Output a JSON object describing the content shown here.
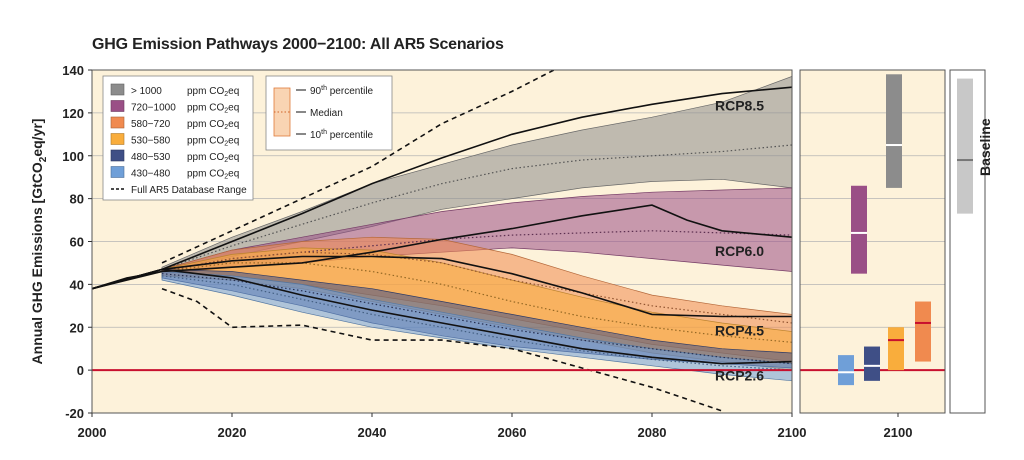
{
  "chart_data": {
    "type": "area",
    "title": "GHG Emission Pathways 2000−2100: All AR5 Scenarios",
    "ylabel_main": "Annual GHG Emissions [GtCO",
    "ylabel_sub": "2",
    "ylabel_tail": "eq/yr]",
    "xlim": [
      2000,
      2100
    ],
    "ylim": [
      -20,
      140
    ],
    "x_ticks": [
      2000,
      2020,
      2040,
      2060,
      2080,
      2100
    ],
    "y_ticks": [
      -20,
      0,
      20,
      40,
      60,
      80,
      100,
      120,
      140
    ],
    "grid": true,
    "colors": {
      "plot_bg": "#fdf2da",
      "zero_line": "#c8102e",
      "grid": "#b5b5b5",
      "gt1000": "#8c8c8c",
      "p720": "#9a4f86",
      "p580": "#f08a4f",
      "p530": "#f9ad3c",
      "p480": "#3f4f86",
      "p430": "#6f9fd8",
      "baseline": "#c8c8c8"
    },
    "series": [
      {
        "name": "> 1000 ppm CO2eq",
        "key": "gt1000",
        "x": [
          2010,
          2020,
          2030,
          2040,
          2050,
          2060,
          2070,
          2080,
          2090,
          2100
        ],
        "low": [
          46,
          53,
          60,
          67,
          75,
          80,
          85,
          88,
          89,
          85
        ],
        "median": [
          47,
          58,
          68,
          78,
          87,
          94,
          98,
          100,
          102,
          105
        ],
        "high": [
          48,
          62,
          74,
          87,
          96,
          105,
          112,
          118,
          125,
          137
        ]
      },
      {
        "name": "720−1000 ppm CO2eq",
        "key": "p720",
        "x": [
          2010,
          2020,
          2030,
          2040,
          2050,
          2060,
          2070,
          2080,
          2090,
          2100
        ],
        "low": [
          45,
          48,
          50,
          53,
          55,
          57,
          55,
          52,
          49,
          46
        ],
        "median": [
          46,
          52,
          55,
          58,
          61,
          63,
          64,
          65,
          64,
          63
        ],
        "high": [
          47,
          56,
          62,
          68,
          74,
          78,
          81,
          83,
          84,
          85
        ]
      },
      {
        "name": "580−720 ppm CO2eq",
        "key": "p580",
        "x": [
          2010,
          2020,
          2030,
          2040,
          2050,
          2060,
          2070,
          2080,
          2090,
          2100
        ],
        "low": [
          44,
          44,
          40,
          35,
          30,
          24,
          18,
          12,
          8,
          4
        ],
        "median": [
          46,
          52,
          55,
          54,
          50,
          42,
          36,
          30,
          26,
          22
        ],
        "high": [
          47,
          56,
          60,
          62,
          61,
          54,
          44,
          35,
          30,
          26
        ]
      },
      {
        "name": "530−580 ppm CO2eq",
        "key": "p530",
        "x": [
          2010,
          2020,
          2030,
          2040,
          2050,
          2060,
          2070,
          2080,
          2090,
          2100
        ],
        "low": [
          44,
          42,
          38,
          32,
          26,
          20,
          14,
          8,
          4,
          0
        ],
        "median": [
          46,
          50,
          50,
          46,
          40,
          32,
          25,
          20,
          16,
          13
        ],
        "high": [
          47,
          54,
          57,
          56,
          50,
          42,
          34,
          27,
          22,
          18
        ]
      },
      {
        "name": "480−530 ppm CO2eq",
        "key": "p480",
        "x": [
          2010,
          2020,
          2030,
          2040,
          2050,
          2060,
          2070,
          2080,
          2090,
          2100
        ],
        "low": [
          43,
          37,
          30,
          22,
          16,
          11,
          8,
          5,
          3,
          1
        ],
        "median": [
          45,
          42,
          37,
          31,
          25,
          19,
          14,
          10,
          6,
          3
        ],
        "high": [
          47,
          46,
          42,
          38,
          32,
          26,
          20,
          14,
          10,
          8
        ]
      },
      {
        "name": "430−480 ppm CO2eq",
        "key": "p430",
        "x": [
          2010,
          2020,
          2030,
          2040,
          2050,
          2060,
          2070,
          2080,
          2090,
          2100
        ],
        "low": [
          42,
          35,
          27,
          20,
          15,
          10,
          6,
          2,
          -2,
          -5
        ],
        "median": [
          44,
          40,
          33,
          26,
          20,
          14,
          9,
          5,
          2,
          0
        ],
        "high": [
          46,
          44,
          40,
          33,
          27,
          21,
          15,
          10,
          6,
          3
        ]
      }
    ],
    "history": {
      "x": [
        2000,
        2005,
        2010
      ],
      "y": [
        38,
        43,
        46
      ]
    },
    "full_range_high": {
      "x": [
        2010,
        2020,
        2030,
        2040,
        2050,
        2060,
        2066
      ],
      "y": [
        50,
        65,
        80,
        95,
        115,
        130,
        140
      ]
    },
    "full_range_low": {
      "x": [
        2010,
        2015,
        2020,
        2030,
        2040,
        2050,
        2060,
        2070,
        2080,
        2090
      ],
      "y": [
        38,
        32,
        20,
        21,
        14,
        14,
        10,
        1,
        -8,
        -19
      ]
    },
    "rcp_lines": [
      {
        "name": "RCP8.5",
        "x": [
          2000,
          2010,
          2020,
          2030,
          2040,
          2050,
          2060,
          2070,
          2080,
          2090,
          2100
        ],
        "y": [
          38,
          47,
          60,
          73,
          87,
          99,
          110,
          118,
          124,
          129,
          132
        ]
      },
      {
        "name": "RCP6.0",
        "x": [
          2000,
          2010,
          2020,
          2030,
          2040,
          2050,
          2060,
          2070,
          2080,
          2085,
          2090,
          2100
        ],
        "y": [
          38,
          46,
          48,
          50,
          55,
          61,
          66,
          72,
          77,
          70,
          65,
          62
        ]
      },
      {
        "name": "RCP4.5",
        "x": [
          2000,
          2010,
          2020,
          2030,
          2040,
          2050,
          2060,
          2070,
          2080,
          2090,
          2100
        ],
        "y": [
          38,
          47,
          51,
          53,
          53,
          52,
          45,
          36,
          26,
          25,
          25
        ]
      },
      {
        "name": "RCP2.6",
        "x": [
          2000,
          2010,
          2020,
          2030,
          2040,
          2050,
          2060,
          2070,
          2080,
          2090,
          2100
        ],
        "y": [
          38,
          47,
          43,
          35,
          28,
          22,
          16,
          10,
          6,
          3,
          4
        ]
      }
    ],
    "rcp_labels": [
      {
        "text": "RCP8.5",
        "x": 2096,
        "y": 124
      },
      {
        "text": "RCP6.0",
        "x": 2096,
        "y": 56
      },
      {
        "text": "RCP4.5",
        "x": 2096,
        "y": 19
      },
      {
        "text": "RCP2.6",
        "x": 2096,
        "y": -2
      }
    ],
    "legend": {
      "placement": "top-left",
      "unit": "ppm CO",
      "unit_sub": "2",
      "unit_tail": "eq",
      "entries": [
        {
          "range": "> 1000",
          "key": "gt1000"
        },
        {
          "range": "720−1000",
          "key": "p720"
        },
        {
          "range": "580−720",
          "key": "p580"
        },
        {
          "range": "530−580",
          "key": "p530"
        },
        {
          "range": "480−530",
          "key": "p480"
        },
        {
          "range": "430−480",
          "key": "p430"
        }
      ],
      "dashed_label": "Full AR5 Database Range"
    },
    "percentile_legend": {
      "placement": "top-center",
      "p90": "90",
      "p90_suffix": "th",
      "p90_tail": " percentile",
      "median": "Median",
      "p10": "10",
      "p10_suffix": "th",
      "p10_tail": " percentile"
    },
    "side_panel": {
      "x_tick": "2100",
      "bars": [
        {
          "key": "gt1000",
          "low": 85,
          "median": 105,
          "high": 138
        },
        {
          "key": "p720",
          "low": 45,
          "median": 64,
          "high": 86
        },
        {
          "key": "p580",
          "low": 4,
          "median": 22,
          "high": 32
        },
        {
          "key": "p530",
          "low": 0,
          "median": 14,
          "high": 20
        },
        {
          "key": "p480",
          "low": -5,
          "median": 2,
          "high": 11
        },
        {
          "key": "p430",
          "low": -7,
          "median": -1,
          "high": 7
        }
      ],
      "baseline": {
        "label": "Baseline",
        "low": 73,
        "median": 98,
        "high": 136
      }
    }
  }
}
